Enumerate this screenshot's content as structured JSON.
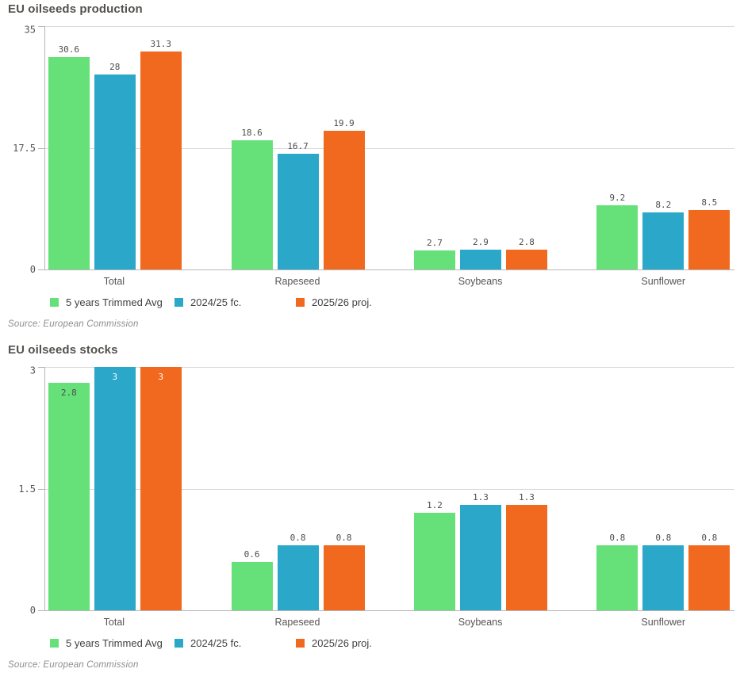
{
  "chart_data": [
    {
      "type": "bar",
      "title": "EU oilseeds production",
      "source": "Source: European Commission",
      "categories": [
        "Total",
        "Rapeseed",
        "Soybeans",
        "Sunflower"
      ],
      "series": [
        {
          "name": "5 years Trimmed Avg",
          "color": "#66e17a",
          "inside_label_color": "#4c4c4c",
          "values": [
            30.6,
            18.6,
            2.7,
            9.2
          ]
        },
        {
          "name": "2024/25 fc.",
          "color": "#2aa7c9",
          "inside_label_color": "#ffffff",
          "values": [
            28,
            16.7,
            2.9,
            8.2
          ]
        },
        {
          "name": "2025/26 proj.",
          "color": "#f0691e",
          "inside_label_color": "#ffffff",
          "values": [
            31.3,
            19.9,
            2.8,
            8.5
          ]
        }
      ],
      "xlabel": "",
      "ylabel": "",
      "ylim": [
        0,
        35
      ],
      "yticks": [
        35,
        17.5,
        0
      ],
      "grid": true,
      "value_labels": true,
      "legend_position": "bottom"
    },
    {
      "type": "bar",
      "title": "EU oilseeds stocks",
      "source": "Source: European Commission",
      "categories": [
        "Total",
        "Rapeseed",
        "Soybeans",
        "Sunflower"
      ],
      "series": [
        {
          "name": "5 years Trimmed Avg",
          "color": "#66e17a",
          "inside_label_color": "#4c4c4c",
          "values": [
            2.8,
            0.6,
            1.2,
            0.8
          ]
        },
        {
          "name": "2024/25 fc.",
          "color": "#2aa7c9",
          "inside_label_color": "#ffffff",
          "values": [
            3,
            0.8,
            1.3,
            0.8
          ]
        },
        {
          "name": "2025/26 proj.",
          "color": "#f0691e",
          "inside_label_color": "#ffffff",
          "values": [
            3,
            0.8,
            1.3,
            0.8
          ]
        }
      ],
      "xlabel": "",
      "ylabel": "",
      "ylim": [
        0,
        3
      ],
      "yticks": [
        3,
        1.5,
        0
      ],
      "grid": true,
      "value_labels": true,
      "legend_position": "bottom"
    }
  ]
}
